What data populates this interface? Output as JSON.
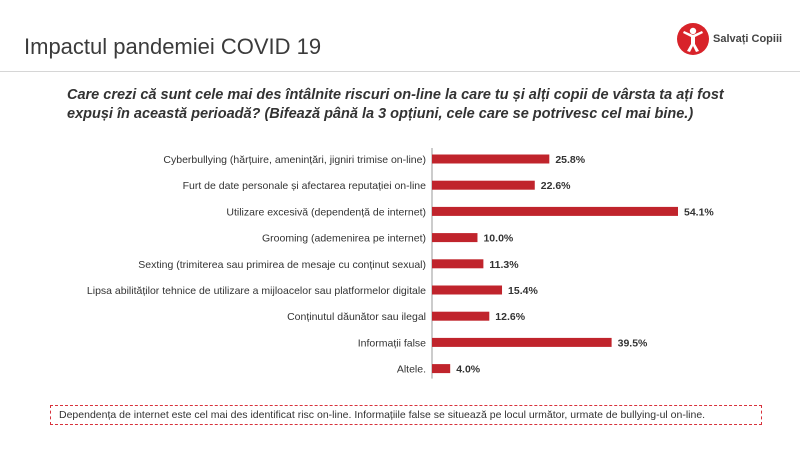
{
  "header": {
    "title": "Impactul pandemiei COVID 19"
  },
  "logo": {
    "text": "Salvați Copiii",
    "color": "#d8232a"
  },
  "question": "Care crezi că sunt cele mai des întâlnite riscuri on-line la care tu și alți copii de vârsta ta ați fost expuși în această perioadă? (Bifează până la 3 opțiuni, cele care se potrivesc cel mai bine.)",
  "chart_data": {
    "type": "bar",
    "orientation": "horizontal",
    "categories": [
      "Cyberbullying (hărțuire, amenințări, jigniri trimise on-line)",
      "Furt de date personale și afectarea reputației on-line",
      "Utilizare excesivă (dependență de internet)",
      "Grooming (ademenirea pe internet)",
      "Sexting (trimiterea sau primirea de mesaje cu conținut sexual)",
      "Lipsa abilităților tehnice de utilizare a mijloacelor sau platformelor digitale",
      "Conținutul dăunător sau ilegal",
      "Informații false",
      "Altele."
    ],
    "values": [
      25.8,
      22.6,
      54.1,
      10.0,
      11.3,
      15.4,
      12.6,
      39.5,
      4.0
    ],
    "value_labels": [
      "25.8%",
      "22.6%",
      "54.1%",
      "10.0%",
      "11.3%",
      "15.4%",
      "12.6%",
      "39.5%",
      "4.0%"
    ],
    "bar_color": "#c0242c",
    "xlim": [
      0,
      54.1
    ],
    "grid": false
  },
  "note": "Dependența de internet este cel mai des identificat risc on-line. Informațiile false se situează pe locul următor, urmate de bullying-ul on-line."
}
